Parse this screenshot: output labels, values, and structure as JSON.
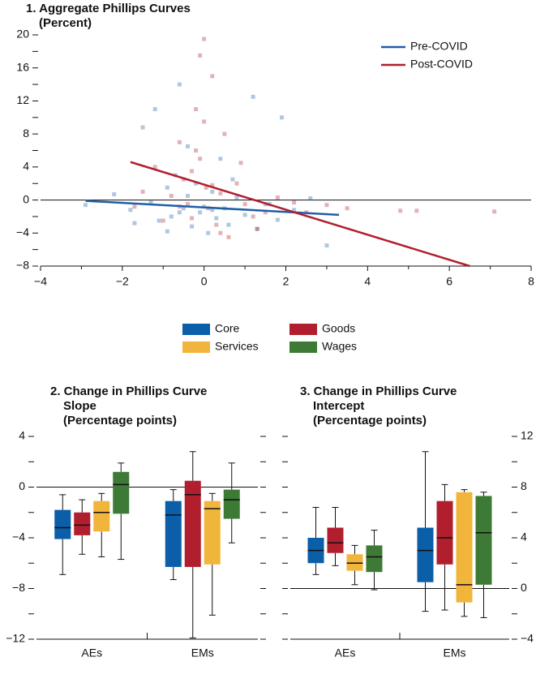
{
  "chart_data": [
    {
      "type": "scatter",
      "title": "1. Aggregate Phillips Curves",
      "subtitle": "(Percent)",
      "xlim": [
        -4,
        8
      ],
      "ylim": [
        -8,
        20
      ],
      "xticks": [
        {
          "value": -4,
          "label": "−4"
        },
        {
          "value": -2,
          "label": "−2"
        },
        0,
        2,
        4,
        6,
        8
      ],
      "yticks": [
        {
          "value": -8,
          "label": "−8"
        },
        {
          "value": -4,
          "label": "−4"
        },
        0,
        4,
        8,
        12,
        16,
        20
      ],
      "legend": "upper right",
      "series": [
        {
          "name": "Pre-COVID",
          "color": "#1f5fa8",
          "x": [
            -2.9,
            -2.2,
            -1.8,
            -1.5,
            -1.3,
            -1.1,
            -0.9,
            -0.8,
            -0.7,
            -0.6,
            -0.5,
            -0.4,
            -0.3,
            -0.2,
            -0.1,
            0,
            0.1,
            0.2,
            0.3,
            0.4,
            0.5,
            0.6,
            0.8,
            1.0,
            1.2,
            1.5,
            1.8,
            2.2,
            2.6,
            3.0,
            -0.6,
            -1.7,
            1.3,
            1.9,
            -0.4,
            0.2,
            -0.9,
            0.7,
            1.6,
            -1.2
          ],
          "y": [
            -0.6,
            0.7,
            -1.2,
            8.8,
            -0.3,
            -2.5,
            1.5,
            -2.0,
            3.0,
            14.0,
            -1.0,
            0.5,
            -3.2,
            2.0,
            -1.5,
            -0.8,
            -4.0,
            1.0,
            -2.2,
            5.0,
            -1.0,
            -3.0,
            0.3,
            -1.8,
            12.5,
            -0.5,
            -2.4,
            -1.2,
            0.2,
            -5.5,
            -1.5,
            -2.8,
            -3.5,
            10.0,
            6.5,
            -1.2,
            -3.8,
            2.5,
            -0.5,
            11.0
          ],
          "fit_x": [
            -2.9,
            3.3
          ],
          "fit_y": [
            -0.1,
            -1.8
          ]
        },
        {
          "name": "Post-COVID",
          "color": "#b11f2e",
          "x": [
            -1.7,
            -1.5,
            -1.2,
            -1.0,
            -0.8,
            -0.6,
            -0.5,
            -0.4,
            -0.3,
            -0.2,
            -0.1,
            0,
            0.05,
            0.1,
            0.2,
            0.3,
            0.4,
            0.5,
            0.6,
            0.8,
            1.0,
            1.2,
            1.5,
            1.8,
            2.2,
            2.5,
            3.0,
            3.5,
            4.8,
            5.2,
            7.1,
            -0.1,
            0.0,
            -0.3,
            0.4,
            -0.6,
            0.9,
            1.3,
            -0.2,
            0.2
          ],
          "y": [
            -0.8,
            1.0,
            4.0,
            -2.5,
            0.5,
            7.0,
            2.5,
            -0.5,
            3.5,
            11.0,
            5.0,
            19.5,
            1.5,
            -1.0,
            15.0,
            -3.0,
            0.8,
            8.0,
            -4.5,
            2.0,
            -0.5,
            -2.0,
            -1.5,
            0.3,
            -0.3,
            -1.5,
            -0.6,
            -1.0,
            -1.3,
            -1.3,
            -1.4,
            17.5,
            9.5,
            -2.2,
            -4.0,
            -0.8,
            4.5,
            -3.5,
            6.0,
            1.8
          ],
          "fit_x": [
            -1.8,
            6.5
          ],
          "fit_y": [
            4.6,
            -8
          ]
        }
      ]
    },
    {
      "type": "box",
      "title": "2. Change in Phillips Curve Slope",
      "subtitle": "(Percentage points)",
      "categories": [
        "AEs",
        "EMs"
      ],
      "ylim": [
        -12,
        4
      ],
      "yaxis_side": "left",
      "yticks": [
        {
          "value": -12,
          "label": "−12"
        },
        {
          "value": -8,
          "label": "−8"
        },
        {
          "value": -4,
          "label": "−4"
        },
        0,
        4
      ],
      "series": [
        {
          "values": [
            [
              -6.9,
              -4.1,
              -3.2,
              -1.8,
              -0.6
            ],
            [
              -7.3,
              -6.3,
              -2.2,
              -1.1,
              -0.2
            ]
          ]
        },
        {
          "values": [
            [
              -5.3,
              -3.8,
              -3.0,
              -2.0,
              -1.0
            ],
            [
              -11.9,
              -6.3,
              -0.6,
              0.5,
              2.8
            ]
          ]
        },
        {
          "values": [
            [
              -5.5,
              -3.5,
              -2.0,
              -1.1,
              -0.5
            ],
            [
              -10.1,
              -6.1,
              -1.7,
              -1.1,
              -0.5
            ]
          ]
        },
        {
          "values": [
            [
              -5.7,
              -2.1,
              0.2,
              1.2,
              1.9
            ],
            [
              -4.4,
              -2.5,
              -1.0,
              -0.2,
              1.9
            ]
          ]
        }
      ]
    },
    {
      "type": "box",
      "title": "3. Change in Phillips Curve Intercept",
      "subtitle": "(Percentage points)",
      "categories": [
        "AEs",
        "EMs"
      ],
      "ylim": [
        -4,
        12
      ],
      "yaxis_side": "right",
      "yticks": [
        {
          "value": -4,
          "label": "−4"
        },
        0,
        4,
        8,
        12
      ],
      "series": [
        {
          "values": [
            [
              1.1,
              2.0,
              3.0,
              4.0,
              6.4
            ],
            [
              -1.8,
              0.5,
              3.0,
              4.8,
              10.8
            ]
          ]
        },
        {
          "values": [
            [
              1.8,
              2.8,
              3.6,
              4.8,
              6.4
            ],
            [
              -1.7,
              1.9,
              4.0,
              6.9,
              8.2
            ]
          ]
        },
        {
          "values": [
            [
              0.3,
              1.4,
              2.0,
              2.7,
              3.4
            ],
            [
              -2.2,
              -1.1,
              0.3,
              7.6,
              7.8
            ]
          ]
        },
        {
          "values": [
            [
              -0.1,
              1.3,
              2.5,
              3.4,
              4.6
            ],
            [
              -2.3,
              0.3,
              4.4,
              7.3,
              7.6
            ]
          ]
        }
      ]
    }
  ],
  "legend": [
    {
      "name": "Core",
      "color": "#0b5ea8"
    },
    {
      "name": "Goods",
      "color": "#b11f2e"
    },
    {
      "name": "Services",
      "color": "#f2b53c"
    },
    {
      "name": "Wages",
      "color": "#3d7a35"
    }
  ]
}
